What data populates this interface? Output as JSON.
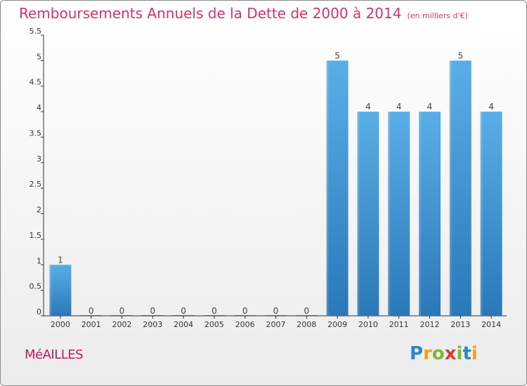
{
  "chart_data": {
    "type": "bar",
    "title": "Remboursements Annuels de la Dette de 2000 à 2014",
    "subtitle": "(en milliers d'€)",
    "categories": [
      "2000",
      "2001",
      "2002",
      "2003",
      "2004",
      "2005",
      "2006",
      "2007",
      "2008",
      "2009",
      "2010",
      "2011",
      "2012",
      "2013",
      "2014"
    ],
    "values": [
      1,
      0,
      0,
      0,
      0,
      0,
      0,
      0,
      0,
      5,
      4,
      4,
      4,
      5,
      4
    ],
    "ylim": [
      0,
      5.5
    ],
    "yticks": [
      "0",
      "0.5",
      "1",
      "1.5",
      "2",
      "2.5",
      "3",
      "3.5",
      "4",
      "4.5",
      "5",
      "5.5"
    ],
    "grid": false,
    "bar_color": "#4a9fd9"
  },
  "commune": "MéAILLES",
  "logo": [
    "P",
    "r",
    "o",
    "x",
    "i",
    "t",
    "i"
  ]
}
